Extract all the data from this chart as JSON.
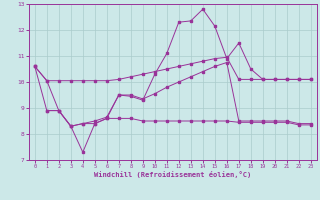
{
  "xlabel": "Windchill (Refroidissement éolien,°C)",
  "bg_color": "#cce8e8",
  "line_color": "#993399",
  "grid_color": "#aacccc",
  "xlim": [
    -0.5,
    23.5
  ],
  "ylim": [
    7,
    13
  ],
  "xticks": [
    0,
    1,
    2,
    3,
    4,
    5,
    6,
    7,
    8,
    9,
    10,
    11,
    12,
    13,
    14,
    15,
    16,
    17,
    18,
    19,
    20,
    21,
    22,
    23
  ],
  "yticks": [
    7,
    8,
    9,
    10,
    11,
    12,
    13
  ],
  "line1_x": [
    0,
    1,
    2,
    3,
    4,
    5,
    6,
    7,
    8,
    9,
    10,
    11,
    12,
    13,
    14,
    15,
    16,
    17,
    18,
    19,
    20,
    21,
    22,
    23
  ],
  "line1_y": [
    10.6,
    10.05,
    10.05,
    10.05,
    10.05,
    10.05,
    10.05,
    10.1,
    10.2,
    10.3,
    10.4,
    10.5,
    10.6,
    10.7,
    10.8,
    10.9,
    10.95,
    10.1,
    10.1,
    10.1,
    10.1,
    10.1,
    10.1,
    10.1
  ],
  "line2_x": [
    0,
    1,
    2,
    3,
    4,
    5,
    6,
    7,
    8,
    9,
    10,
    11,
    12,
    13,
    14,
    15,
    16,
    17,
    18,
    19,
    20,
    21,
    22,
    23
  ],
  "line2_y": [
    10.6,
    10.05,
    8.9,
    8.3,
    7.3,
    8.4,
    8.6,
    9.5,
    9.45,
    9.3,
    10.3,
    11.1,
    12.3,
    12.35,
    12.8,
    12.15,
    10.9,
    11.5,
    10.5,
    10.1,
    10.1,
    10.1,
    10.1,
    10.1
  ],
  "line3_x": [
    0,
    1,
    2,
    3,
    4,
    5,
    6,
    7,
    8,
    9,
    10,
    11,
    12,
    13,
    14,
    15,
    16,
    17,
    18,
    19,
    20,
    21,
    22,
    23
  ],
  "line3_y": [
    10.6,
    8.9,
    8.9,
    8.3,
    8.4,
    8.5,
    8.65,
    9.5,
    9.5,
    9.35,
    9.55,
    9.8,
    10.0,
    10.2,
    10.4,
    10.6,
    10.75,
    8.5,
    8.5,
    8.5,
    8.5,
    8.5,
    8.4,
    8.4
  ],
  "line4_x": [
    1,
    2,
    3,
    4,
    5,
    6,
    7,
    8,
    9,
    10,
    11,
    12,
    13,
    14,
    15,
    16,
    17,
    18,
    19,
    20,
    21,
    22,
    23
  ],
  "line4_y": [
    8.9,
    8.9,
    8.3,
    8.4,
    8.4,
    8.6,
    8.6,
    8.6,
    8.5,
    8.5,
    8.5,
    8.5,
    8.5,
    8.5,
    8.5,
    8.5,
    8.45,
    8.45,
    8.45,
    8.45,
    8.45,
    8.35,
    8.35
  ]
}
